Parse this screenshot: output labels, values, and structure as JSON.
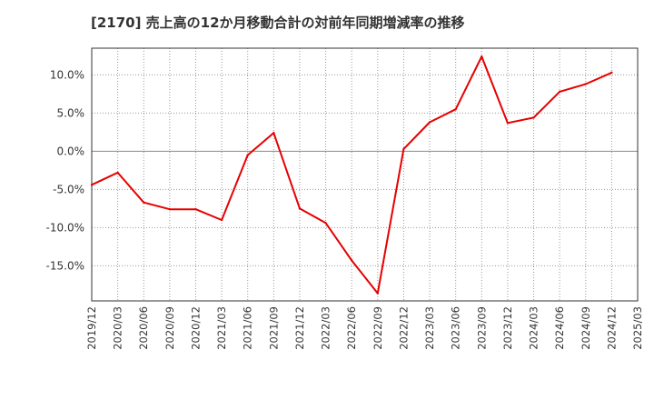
{
  "chart_data": {
    "type": "line",
    "title": "[2170]  売上高の12か月移動合計の対前年同期増減率の推移",
    "xlabel": "",
    "ylabel": "",
    "x": [
      "2019/12",
      "2020/03",
      "2020/06",
      "2020/09",
      "2020/12",
      "2021/03",
      "2021/06",
      "2021/09",
      "2021/12",
      "2022/03",
      "2022/06",
      "2022/09",
      "2022/12",
      "2023/03",
      "2023/06",
      "2023/09",
      "2023/12",
      "2024/03",
      "2024/06",
      "2024/09",
      "2024/12",
      "2025/03"
    ],
    "series": [
      {
        "name": "対前年同期増減率",
        "color": "#e60000",
        "values": [
          -4.4,
          -2.8,
          -6.7,
          -7.6,
          -7.6,
          -9.0,
          -0.5,
          2.4,
          -7.5,
          -9.4,
          -14.3,
          -18.6,
          0.3,
          3.8,
          5.5,
          12.4,
          3.7,
          4.4,
          7.8,
          8.8,
          10.3,
          null
        ]
      }
    ],
    "yticks": [
      10,
      5,
      0,
      -5,
      -10,
      -15
    ],
    "ytick_labels": [
      "10.0%",
      "5.0%",
      "0.0%",
      "-5.0%",
      "-10.0%",
      "-15.0%"
    ],
    "ylim": [
      -19.6,
      13.5
    ],
    "grid": true
  }
}
